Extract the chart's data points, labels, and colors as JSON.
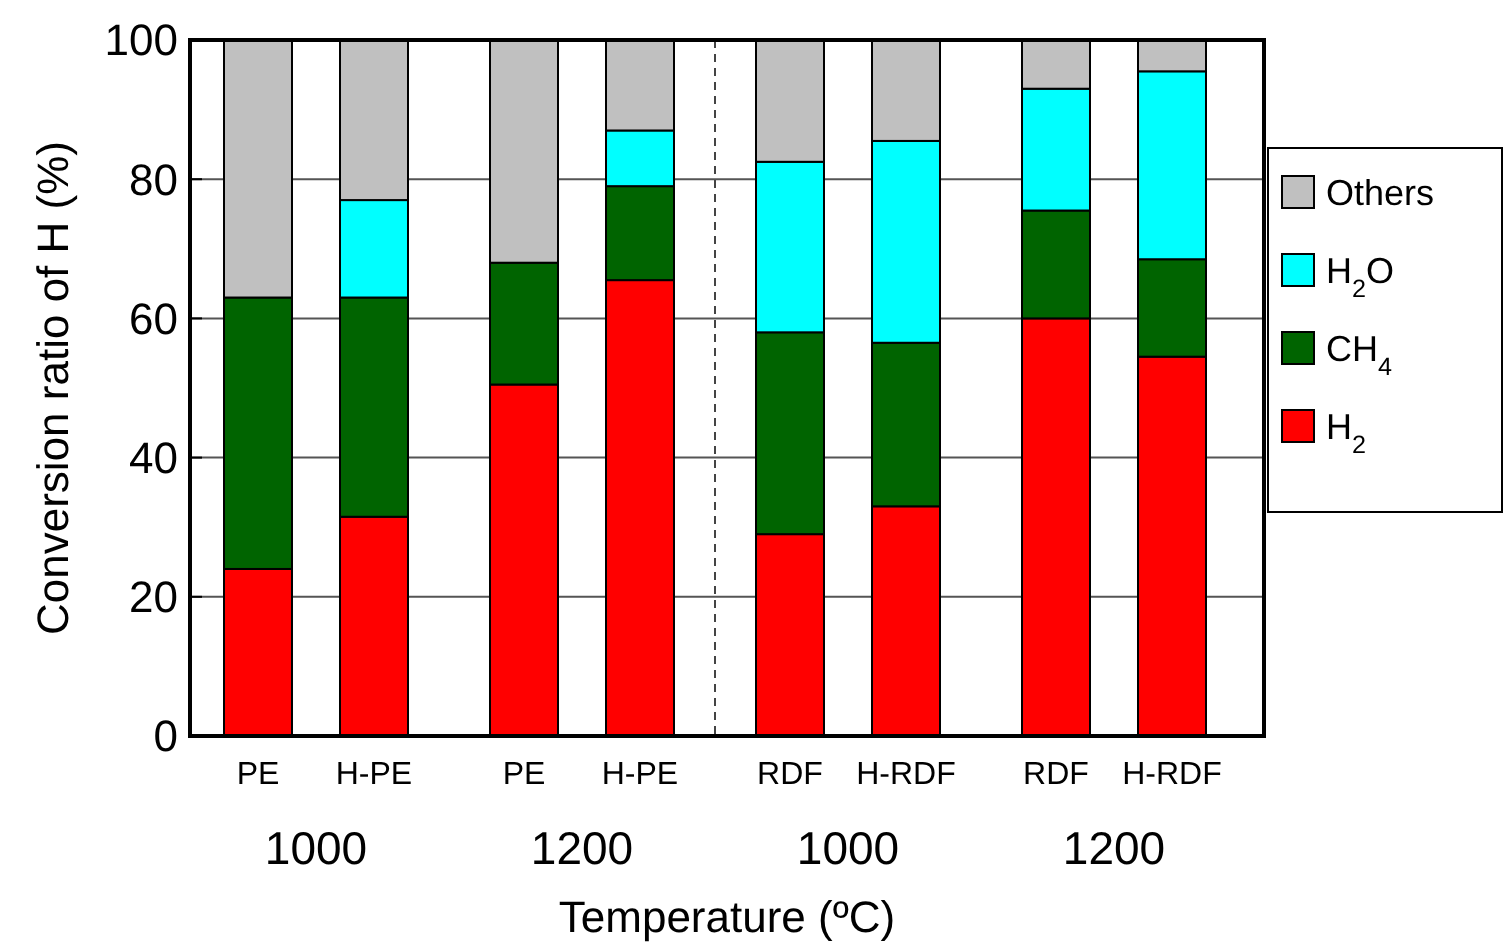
{
  "chart_data": {
    "type": "bar",
    "stacked": true,
    "xlabel": "Temperature (ºC)",
    "ylabel": "Conversion ratio of H (%)",
    "categories": [
      "PE",
      "H-PE",
      "PE",
      "H-PE",
      "RDF",
      "H-RDF",
      "RDF",
      "H-RDF"
    ],
    "series": [
      {
        "name": "H$_{2}$",
        "color": "#ff0000",
        "values": [
          24,
          31.5,
          50.5,
          65.5,
          29,
          33,
          60,
          54.5
        ]
      },
      {
        "name": "CH$_{4}$",
        "color": "#006400",
        "values": [
          39,
          31.5,
          17.5,
          13.5,
          29,
          23.5,
          15.5,
          14
        ]
      },
      {
        "name": "H$_{2}$O",
        "color": "#00ffff",
        "values": [
          null,
          14,
          null,
          8,
          24.5,
          29,
          17.5,
          27
        ]
      },
      {
        "name": "Others",
        "color": "#c0c0c0",
        "values": [
          37,
          23,
          32,
          13,
          17.5,
          14.5,
          7,
          4.5
        ]
      }
    ],
    "annotations": [
      "1000",
      "1200",
      "1000",
      "1200"
    ],
    "ylim": [
      0,
      100
    ],
    "yticks": [
      0,
      20,
      40,
      60,
      80,
      100
    ],
    "grid": "y",
    "legend": "right"
  }
}
